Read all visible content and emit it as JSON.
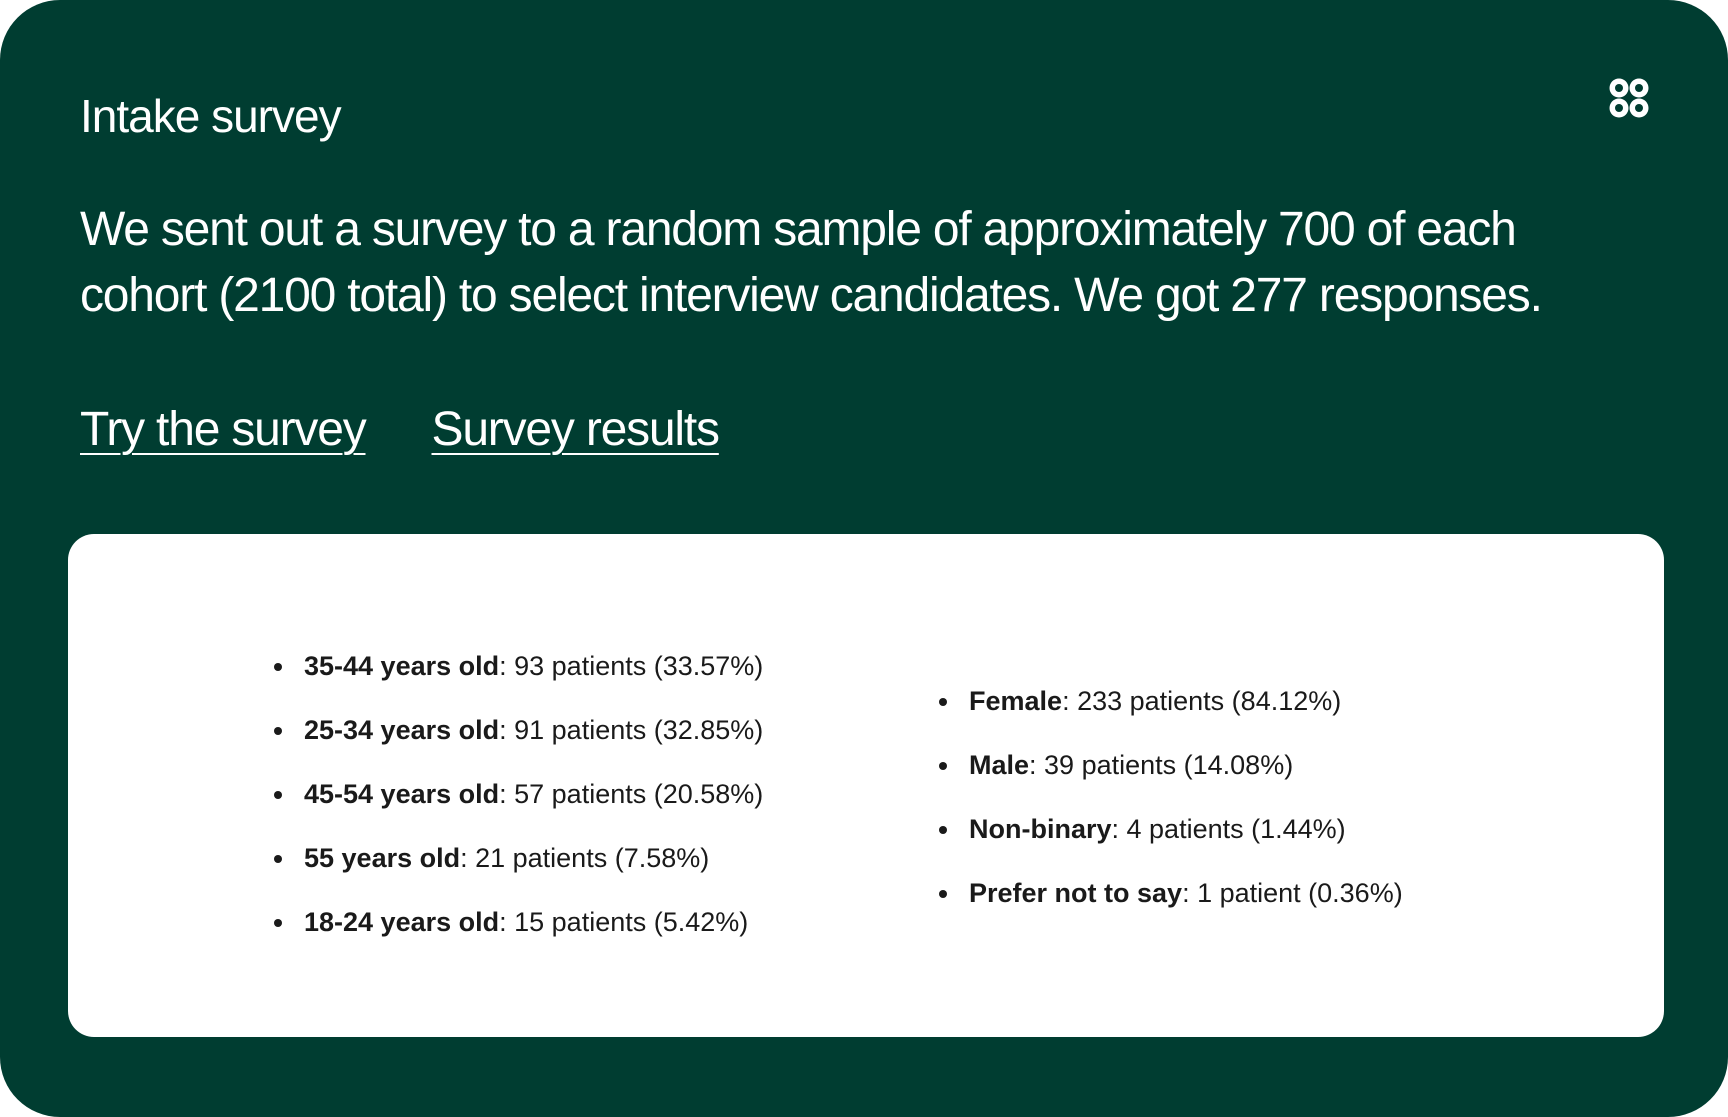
{
  "colors": {
    "card_background": "#003d31",
    "card_text": "#ffffff",
    "panel_background": "#ffffff",
    "panel_text": "#1a1a1a"
  },
  "header": {
    "title": "Intake survey",
    "logo_icon": "clover-logo-icon"
  },
  "description": "We sent out a survey to a random sample of approximately 700 of each cohort (2100 total) to select interview candidates. We got 277 responses.",
  "links": {
    "try_survey": "Try the survey",
    "survey_results": "Survey results"
  },
  "results": {
    "age_groups": [
      {
        "label": "35-44 years old",
        "value": ": 93 patients (33.57%)"
      },
      {
        "label": "25-34 years old",
        "value": ": 91 patients (32.85%)"
      },
      {
        "label": "45-54 years old",
        "value": ": 57 patients (20.58%)"
      },
      {
        "label": "55 years old",
        "value": ": 21 patients (7.58%)"
      },
      {
        "label": "18-24 years old",
        "value": ": 15 patients (5.42%)"
      }
    ],
    "genders": [
      {
        "label": "Female",
        "value": ": 233 patients (84.12%)"
      },
      {
        "label": "Male",
        "value": ": 39 patients (14.08%)"
      },
      {
        "label": "Non-binary",
        "value": ": 4 patients (1.44%)"
      },
      {
        "label": "Prefer not to say",
        "value": ": 1 patient (0.36%)"
      }
    ]
  }
}
